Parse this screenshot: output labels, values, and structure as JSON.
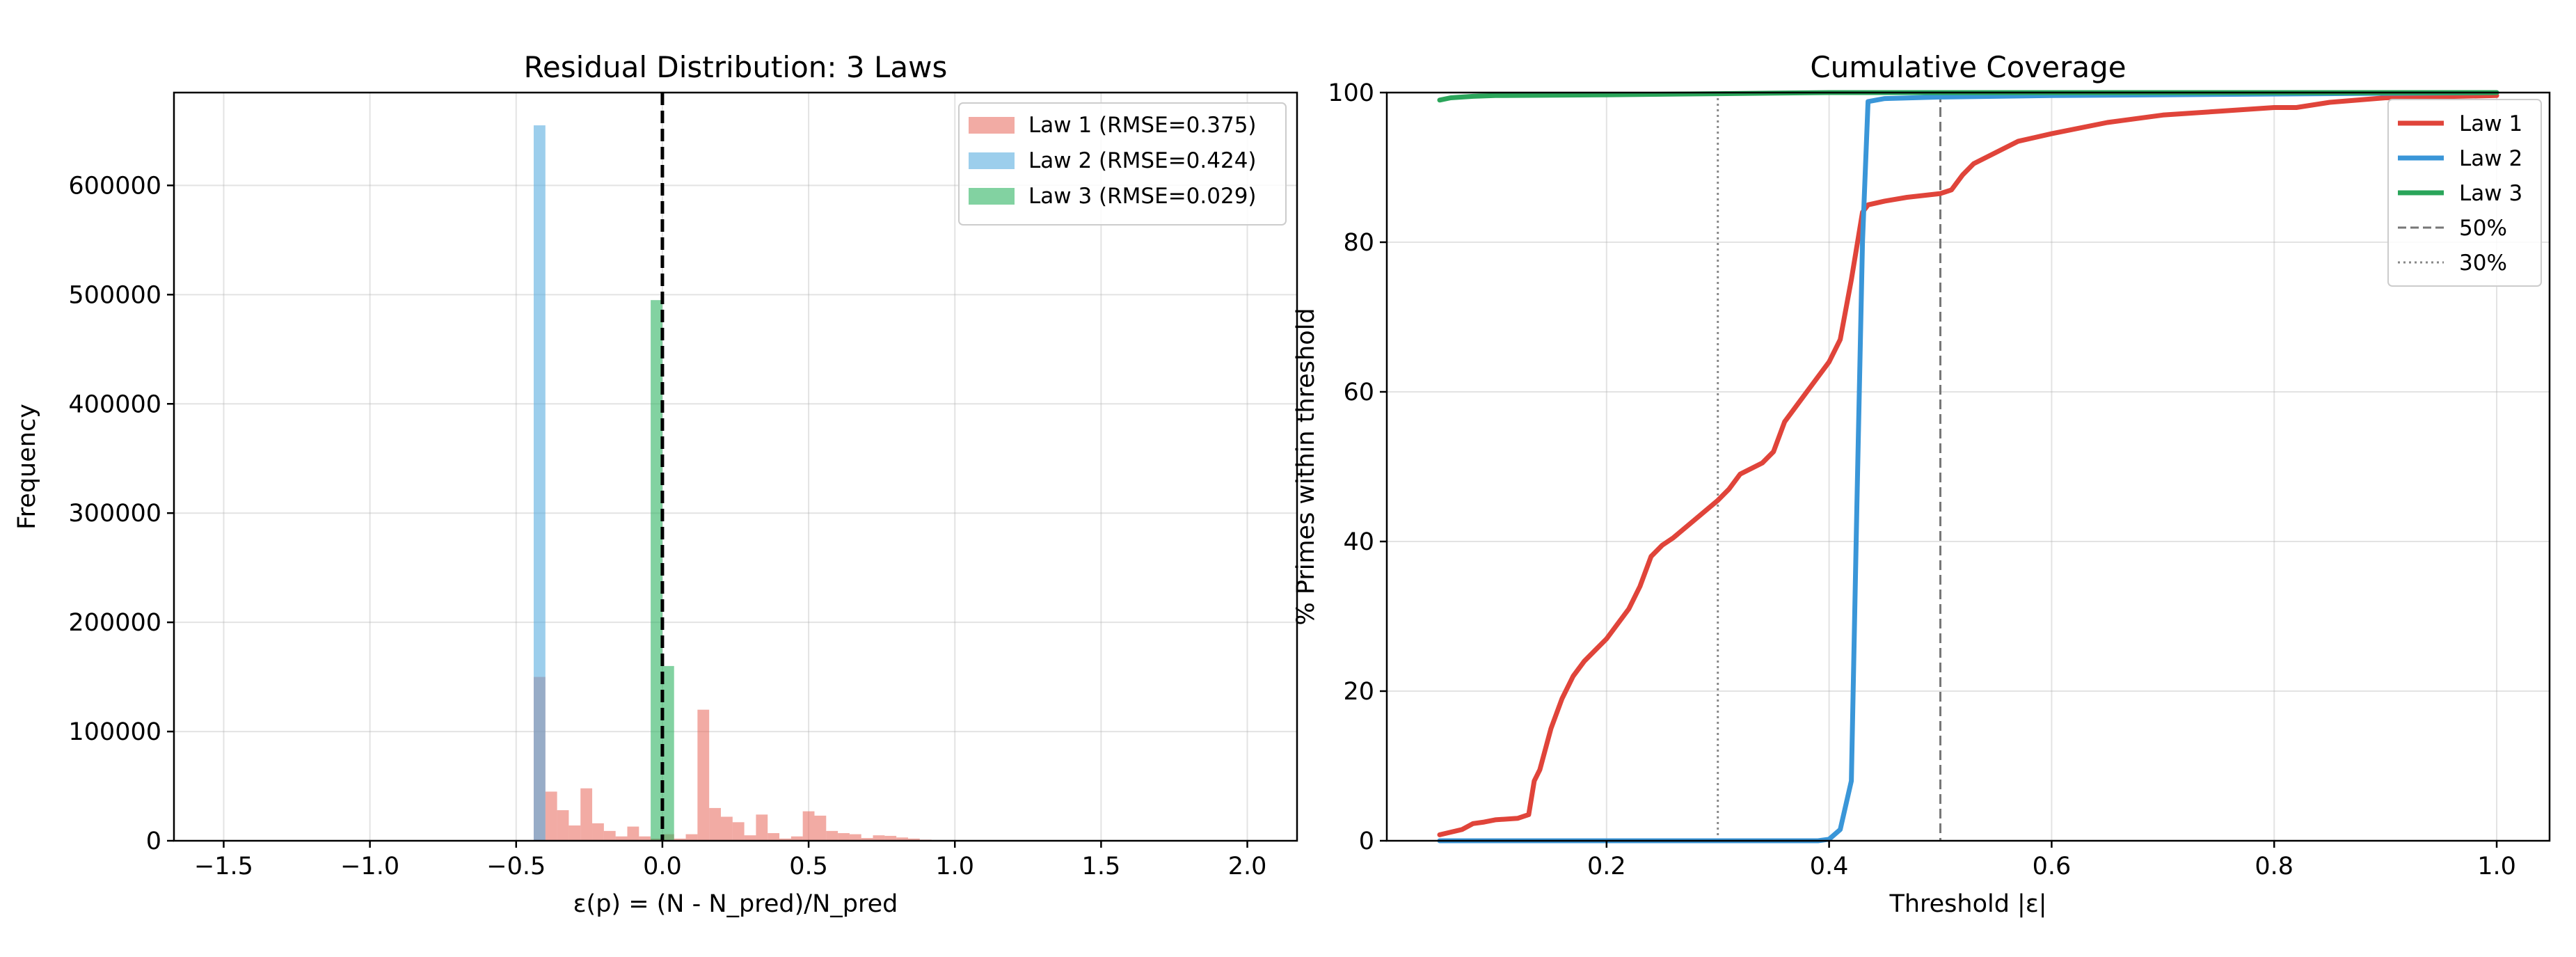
{
  "chart_data": [
    {
      "type": "bar",
      "title": "Residual Distribution: 3 Laws",
      "xlabel": "ε(p) = (N - N_pred)/N_pred",
      "ylabel": "Frequency",
      "xlim": [
        -1.67,
        2.17
      ],
      "ylim": [
        0,
        685000
      ],
      "xticks": [
        -1.5,
        -1.0,
        -0.5,
        0.0,
        0.5,
        1.0,
        1.5,
        2.0
      ],
      "xtick_labels": [
        "−1.5",
        "−1.0",
        "−0.5",
        "0.0",
        "0.5",
        "1.0",
        "1.5",
        "2.0"
      ],
      "yticks": [
        0,
        100000,
        200000,
        300000,
        400000,
        500000,
        600000
      ],
      "ytick_labels": [
        "0",
        "100000",
        "200000",
        "300000",
        "400000",
        "500000",
        "600000"
      ],
      "grid": true,
      "legend_position": "top-right",
      "bin_width": 0.04,
      "vline": {
        "x": 0.0,
        "style": "dashed",
        "color": "#000000"
      },
      "series": [
        {
          "name": "Law 1 (RMSE=0.375)",
          "color": "#e8665a",
          "opacity": 0.55,
          "bins": [
            [
              -0.44,
              150000
            ],
            [
              -0.4,
              45000
            ],
            [
              -0.36,
              28000
            ],
            [
              -0.32,
              14000
            ],
            [
              -0.28,
              48000
            ],
            [
              -0.24,
              16000
            ],
            [
              -0.2,
              9000
            ],
            [
              -0.16,
              4000
            ],
            [
              -0.12,
              13000
            ],
            [
              -0.08,
              4000
            ],
            [
              -0.04,
              2000
            ],
            [
              0.0,
              6000
            ],
            [
              0.04,
              2000
            ],
            [
              0.08,
              6000
            ],
            [
              0.12,
              120000
            ],
            [
              0.16,
              30000
            ],
            [
              0.2,
              22000
            ],
            [
              0.24,
              17000
            ],
            [
              0.28,
              5000
            ],
            [
              0.32,
              24000
            ],
            [
              0.36,
              7000
            ],
            [
              0.4,
              2000
            ],
            [
              0.44,
              4000
            ],
            [
              0.48,
              27000
            ],
            [
              0.52,
              23000
            ],
            [
              0.56,
              9000
            ],
            [
              0.6,
              7000
            ],
            [
              0.64,
              6000
            ],
            [
              0.68,
              2500
            ],
            [
              0.72,
              5000
            ],
            [
              0.76,
              4500
            ],
            [
              0.8,
              3000
            ],
            [
              0.84,
              2000
            ],
            [
              0.88,
              1000
            ]
          ]
        },
        {
          "name": "Law 2 (RMSE=0.424)",
          "color": "#5aaee0",
          "opacity": 0.6,
          "bins": [
            [
              -0.44,
              655000
            ]
          ]
        },
        {
          "name": "Law 3 (RMSE=0.029)",
          "color": "#2fb463",
          "opacity": 0.6,
          "bins": [
            [
              -0.04,
              495000
            ],
            [
              0.0,
              160000
            ]
          ]
        }
      ]
    },
    {
      "type": "line",
      "title": "Cumulative Coverage",
      "xlabel": "Threshold |ε|",
      "ylabel": "% Primes within threshold",
      "xlim": [
        0.0025,
        1.0475
      ],
      "ylim": [
        0,
        100
      ],
      "xticks": [
        0.2,
        0.4,
        0.6,
        0.8,
        1.0
      ],
      "xtick_labels": [
        "0.2",
        "0.4",
        "0.6",
        "0.8",
        "1.0"
      ],
      "yticks": [
        0,
        20,
        40,
        60,
        80,
        100
      ],
      "ytick_labels": [
        "0",
        "20",
        "40",
        "60",
        "80",
        "100"
      ],
      "grid": true,
      "legend_position": "top-right",
      "series": [
        {
          "name": "Law 1",
          "color": "#e0443a",
          "x": [
            0.05,
            0.07,
            0.08,
            0.09,
            0.1,
            0.12,
            0.13,
            0.135,
            0.14,
            0.15,
            0.16,
            0.17,
            0.18,
            0.19,
            0.2,
            0.22,
            0.23,
            0.24,
            0.25,
            0.26,
            0.28,
            0.3,
            0.31,
            0.32,
            0.34,
            0.35,
            0.36,
            0.38,
            0.4,
            0.41,
            0.42,
            0.43,
            0.435,
            0.45,
            0.47,
            0.5,
            0.51,
            0.52,
            0.53,
            0.55,
            0.57,
            0.6,
            0.65,
            0.7,
            0.75,
            0.8,
            0.82,
            0.85,
            0.9,
            1.0
          ],
          "y": [
            0.8,
            1.5,
            2.3,
            2.5,
            2.8,
            3.0,
            3.5,
            8.0,
            9.5,
            15.0,
            19.0,
            22.0,
            24.0,
            25.5,
            27.0,
            31.0,
            34.0,
            38.0,
            39.5,
            40.5,
            43.0,
            45.5,
            47.0,
            49.0,
            50.5,
            52.0,
            56.0,
            60.0,
            64.0,
            67.0,
            75.0,
            84.0,
            85.0,
            85.5,
            86.0,
            86.5,
            87.0,
            89.0,
            90.5,
            92.0,
            93.5,
            94.5,
            96.0,
            97.0,
            97.5,
            98.0,
            98.0,
            98.7,
            99.3,
            99.6
          ]
        },
        {
          "name": "Law 2",
          "color": "#3a96d8",
          "x": [
            0.05,
            0.3,
            0.39,
            0.4,
            0.41,
            0.42,
            0.425,
            0.43,
            0.435,
            0.45,
            0.5,
            0.6,
            0.7,
            1.0
          ],
          "y": [
            0.0,
            0.0,
            0.0,
            0.2,
            1.5,
            8.0,
            45.0,
            80.0,
            98.8,
            99.2,
            99.4,
            99.6,
            99.7,
            100.0
          ]
        },
        {
          "name": "Law 3",
          "color": "#2aa55a",
          "x": [
            0.05,
            0.06,
            0.08,
            0.1,
            0.2,
            0.3,
            0.4,
            1.0
          ],
          "y": [
            99.0,
            99.3,
            99.5,
            99.6,
            99.7,
            99.85,
            100.0,
            100.0
          ]
        }
      ],
      "reference_lines": [
        {
          "name": "50%",
          "x": 0.5,
          "style": "dashed",
          "color": "#777777"
        },
        {
          "name": "30%",
          "x": 0.3,
          "style": "dotted",
          "color": "#888888"
        }
      ]
    }
  ]
}
